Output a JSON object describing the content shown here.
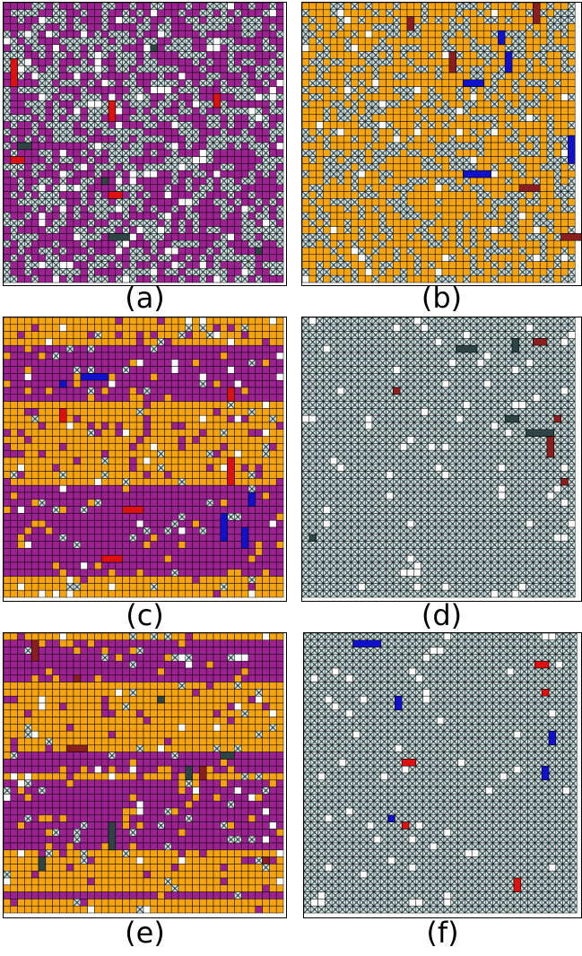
{
  "colors": {
    "purple": "#9b2290",
    "orange": "#f5a40d",
    "empty": "#ffffff",
    "dotted_bg": "#dfe5e5",
    "dotted_fg": "#2b4a4a",
    "red": "#dd1111",
    "blue": "#1111cc",
    "dark": "#2f4545",
    "brown": "#8b1e1e",
    "gridline": "#000000"
  },
  "panels": [
    {
      "id": "a",
      "label": "(a)",
      "palette": "purple-dotted",
      "markers": [
        "red",
        "dark"
      ]
    },
    {
      "id": "b",
      "label": "(b)",
      "palette": "orange-dotted",
      "markers": [
        "blue",
        "brown"
      ]
    },
    {
      "id": "c",
      "label": "(c)",
      "palette": "orange-purple-rows",
      "markers": [
        "red",
        "blue"
      ]
    },
    {
      "id": "d",
      "label": "(d)",
      "palette": "dotted",
      "markers": [
        "brown",
        "dark"
      ]
    },
    {
      "id": "e",
      "label": "(e)",
      "palette": "orange-purple-rows",
      "markers": [
        "brown",
        "dark"
      ]
    },
    {
      "id": "f",
      "label": "(f)",
      "palette": "dotted",
      "markers": [
        "red",
        "blue"
      ]
    }
  ]
}
